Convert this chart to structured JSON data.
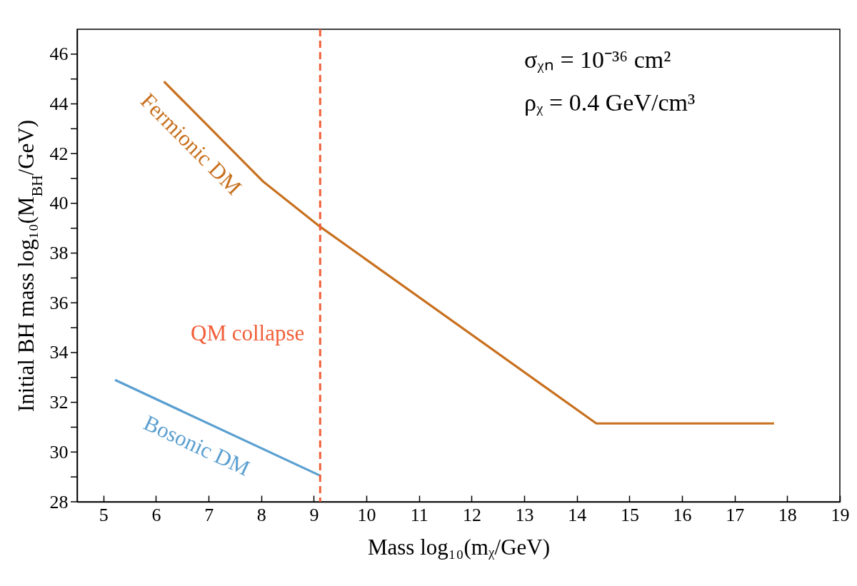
{
  "chart_data": {
    "type": "line",
    "xlabel": "Mass  log₁₀(mᵪ/GeV)",
    "ylabel": "Initial BH mass  log₁₀(M$_{BH}$/GeV)",
    "xlim": [
      4.5,
      19
    ],
    "ylim": [
      28,
      47
    ],
    "xticks": [
      5,
      6,
      7,
      8,
      9,
      10,
      11,
      12,
      13,
      14,
      15,
      16,
      17,
      18,
      19
    ],
    "yticks": [
      28,
      {
        "value": 29,
        "label": null
      },
      30,
      {
        "value": 31,
        "label": null
      },
      32,
      {
        "value": 33,
        "label": null
      },
      34,
      {
        "value": 35,
        "label": null
      },
      36,
      {
        "value": 37,
        "label": null
      },
      38,
      {
        "value": 39,
        "label": null
      },
      40,
      {
        "value": 41,
        "label": null
      },
      42,
      {
        "value": 43,
        "label": null
      },
      44,
      {
        "value": 45,
        "label": null
      },
      46
    ],
    "series": [
      {
        "name": "Fermionic DM",
        "color": "#c8701e",
        "x": [
          6.15,
          8.04,
          9.12,
          14.37,
          17.75
        ],
        "values": [
          44.9,
          40.87,
          39.06,
          31.15,
          31.15
        ]
      },
      {
        "name": "Bosonic DM",
        "color": "#5a9fd0",
        "x": [
          5.22,
          9.12
        ],
        "values": [
          32.9,
          29.05
        ]
      }
    ],
    "ref_lines": [
      {
        "axis": "x",
        "value": 9.12,
        "label": "QM collapse",
        "color": "#f0603a",
        "line_style": "dashed"
      }
    ],
    "annotations": [
      "σᵪₙ = 10⁻³⁶ cm²",
      "ρᵪ = 0.4 GeV/cm³"
    ],
    "line_style": "solid"
  }
}
